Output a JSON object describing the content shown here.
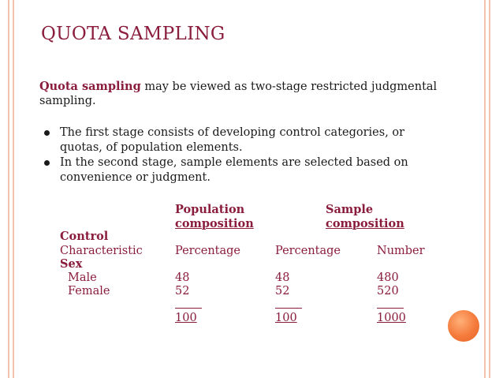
{
  "title": "QUOTA SAMPLING",
  "intro": {
    "term": "Quota sampling",
    "rest": " may be viewed as two-stage restricted judgmental sampling."
  },
  "bullets": [
    "The first stage consists of developing control categories, or quotas, of population elements.",
    "In the second stage, sample elements are selected based on convenience or judgment."
  ],
  "table": {
    "group_population": {
      "line1": "Population",
      "line2": "composition"
    },
    "group_sample": {
      "line1": "Sample",
      "line2": "composition"
    },
    "control_label": "Control",
    "characteristic_label": "Characteristic",
    "col_percentage_pop": "Percentage",
    "col_percentage_sample": "Percentage",
    "col_number": "Number",
    "sex_label": "Sex",
    "rows": [
      {
        "label": "Male",
        "pop_pct": "48",
        "sample_pct": "48",
        "number": "480"
      },
      {
        "label": "Female",
        "pop_pct": "52",
        "sample_pct": "52",
        "number": "520"
      }
    ],
    "totals": {
      "pop_pct": "100",
      "sample_pct": "100",
      "number": "1000"
    }
  },
  "colors": {
    "title": "#8a1c3c",
    "frame": "#f3c3b0",
    "accent_circle": "#f47a3a"
  }
}
